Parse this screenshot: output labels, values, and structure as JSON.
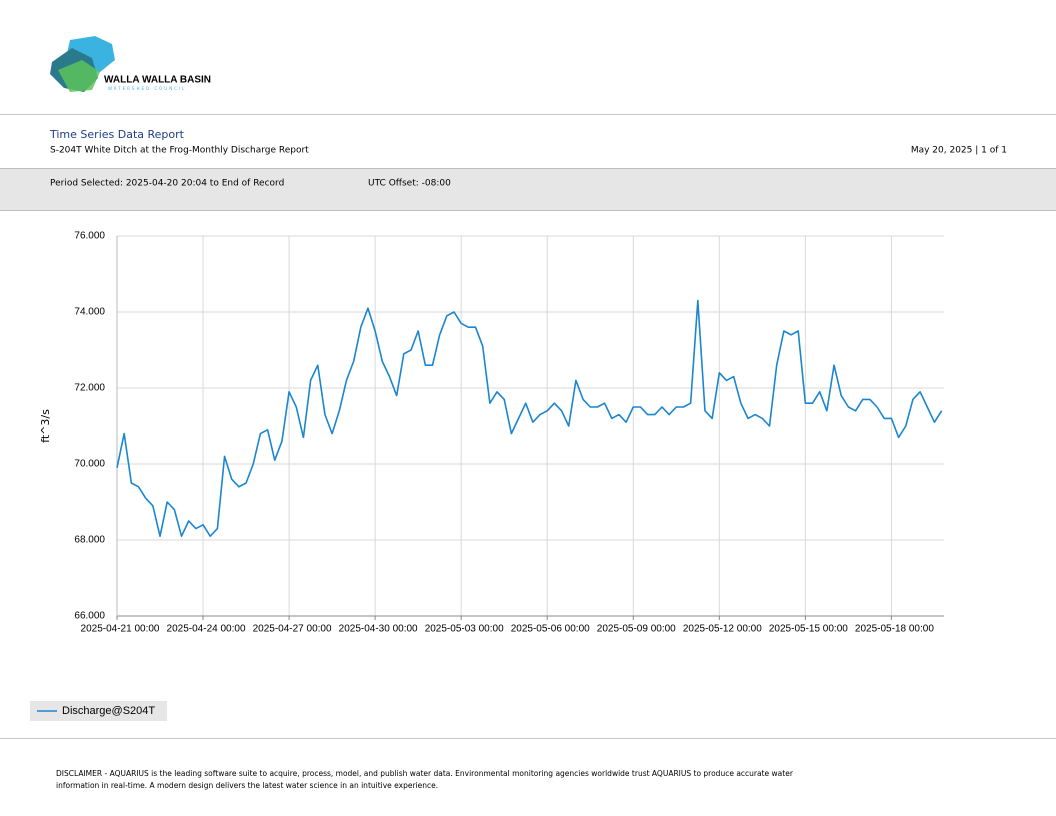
{
  "header": {
    "logo_name": "WALLA WALLA BASIN",
    "logo_sub": "WATERSHED COUNCIL",
    "title": "Time Series Data Report",
    "subtitle": "S-204T White Ditch at the Frog-Monthly Discharge Report",
    "date_page": "May 20, 2025 | 1 of 1",
    "period": "Period Selected: 2025-04-20 20:04 to End of Record",
    "utc_offset": "UTC Offset: -08:00"
  },
  "disclaimer": [
    "DISCLAIMER - AQUARIUS is the leading software suite to acquire, process, model, and publish water data. Environmental monitoring agencies worldwide trust AQUARIUS to produce accurate water",
    "information in real-time. A modern design delivers the latest water science in an intuitive experience."
  ],
  "chart_data": {
    "type": "line",
    "y_label": "ft^3/s",
    "grid": true,
    "legend": "bottom-left",
    "xlim": [
      "2025-04-21 00:00",
      "2025-05-19 20:00"
    ],
    "xticks": [
      "2025-04-21 00:00",
      "2025-04-24 00:00",
      "2025-04-27 00:00",
      "2025-04-30 00:00",
      "2025-05-03 00:00",
      "2025-05-06 00:00",
      "2025-05-09 00:00",
      "2025-05-12 00:00",
      "2025-05-15 00:00",
      "2025-05-18 00:00"
    ],
    "ylim": [
      66,
      76
    ],
    "yticks": [
      {
        "value": 66,
        "label": "66.000"
      },
      {
        "value": 68,
        "label": "68.000"
      },
      {
        "value": 70,
        "label": "70.000"
      },
      {
        "value": 72,
        "label": "72.000"
      },
      {
        "value": 74,
        "label": "74.000"
      },
      {
        "value": 76,
        "label": "76.000"
      }
    ],
    "x": [
      "2025-04-21 00:00",
      "2025-04-21 06:00",
      "2025-04-21 12:00",
      "2025-04-21 18:00",
      "2025-04-22 00:00",
      "2025-04-22 06:00",
      "2025-04-22 12:00",
      "2025-04-22 18:00",
      "2025-04-23 00:00",
      "2025-04-23 06:00",
      "2025-04-23 12:00",
      "2025-04-23 18:00",
      "2025-04-24 00:00",
      "2025-04-24 06:00",
      "2025-04-24 12:00",
      "2025-04-24 18:00",
      "2025-04-25 00:00",
      "2025-04-25 06:00",
      "2025-04-25 12:00",
      "2025-04-25 18:00",
      "2025-04-26 00:00",
      "2025-04-26 06:00",
      "2025-04-26 12:00",
      "2025-04-26 18:00",
      "2025-04-27 00:00",
      "2025-04-27 06:00",
      "2025-04-27 12:00",
      "2025-04-27 18:00",
      "2025-04-28 00:00",
      "2025-04-28 06:00",
      "2025-04-28 12:00",
      "2025-04-28 18:00",
      "2025-04-29 00:00",
      "2025-04-29 06:00",
      "2025-04-29 12:00",
      "2025-04-29 18:00",
      "2025-04-30 00:00",
      "2025-04-30 06:00",
      "2025-04-30 12:00",
      "2025-04-30 18:00",
      "2025-05-01 00:00",
      "2025-05-01 06:00",
      "2025-05-01 12:00",
      "2025-05-01 18:00",
      "2025-05-02 00:00",
      "2025-05-02 06:00",
      "2025-05-02 12:00",
      "2025-05-02 18:00",
      "2025-05-03 00:00",
      "2025-05-03 06:00",
      "2025-05-03 12:00",
      "2025-05-03 18:00",
      "2025-05-04 00:00",
      "2025-05-04 06:00",
      "2025-05-04 12:00",
      "2025-05-04 18:00",
      "2025-05-05 00:00",
      "2025-05-05 06:00",
      "2025-05-05 12:00",
      "2025-05-05 18:00",
      "2025-05-06 00:00",
      "2025-05-06 06:00",
      "2025-05-06 12:00",
      "2025-05-06 18:00",
      "2025-05-07 00:00",
      "2025-05-07 06:00",
      "2025-05-07 12:00",
      "2025-05-07 18:00",
      "2025-05-08 00:00",
      "2025-05-08 06:00",
      "2025-05-08 12:00",
      "2025-05-08 18:00",
      "2025-05-09 00:00",
      "2025-05-09 06:00",
      "2025-05-09 12:00",
      "2025-05-09 18:00",
      "2025-05-10 00:00",
      "2025-05-10 06:00",
      "2025-05-10 12:00",
      "2025-05-10 18:00",
      "2025-05-11 00:00",
      "2025-05-11 06:00",
      "2025-05-11 12:00",
      "2025-05-11 18:00",
      "2025-05-12 00:00",
      "2025-05-12 06:00",
      "2025-05-12 12:00",
      "2025-05-12 18:00",
      "2025-05-13 00:00",
      "2025-05-13 06:00",
      "2025-05-13 12:00",
      "2025-05-13 18:00",
      "2025-05-14 00:00",
      "2025-05-14 06:00",
      "2025-05-14 12:00",
      "2025-05-14 18:00",
      "2025-05-15 00:00",
      "2025-05-15 06:00",
      "2025-05-15 12:00",
      "2025-05-15 18:00",
      "2025-05-16 00:00",
      "2025-05-16 06:00",
      "2025-05-16 12:00",
      "2025-05-16 18:00",
      "2025-05-17 00:00",
      "2025-05-17 06:00",
      "2025-05-17 12:00",
      "2025-05-17 18:00",
      "2025-05-18 00:00",
      "2025-05-18 06:00",
      "2025-05-18 12:00",
      "2025-05-18 18:00",
      "2025-05-19 00:00",
      "2025-05-19 06:00",
      "2025-05-19 12:00",
      "2025-05-19 18:00"
    ],
    "series": [
      {
        "name": "Discharge@S204T",
        "color": "#1a86d0",
        "values": [
          69.9,
          70.8,
          69.5,
          69.4,
          69.1,
          68.9,
          68.1,
          69.0,
          68.8,
          68.1,
          68.5,
          68.3,
          68.4,
          68.1,
          68.3,
          70.2,
          69.6,
          69.4,
          69.5,
          70.0,
          70.8,
          70.9,
          70.1,
          70.6,
          71.9,
          71.5,
          70.7,
          72.2,
          72.6,
          71.3,
          70.8,
          71.4,
          72.2,
          72.7,
          73.6,
          74.1,
          73.5,
          72.7,
          72.3,
          71.8,
          72.9,
          73.0,
          73.5,
          72.6,
          72.6,
          73.4,
          73.9,
          74.0,
          73.7,
          73.6,
          73.6,
          73.1,
          71.6,
          71.9,
          71.7,
          70.8,
          71.2,
          71.6,
          71.1,
          71.3,
          71.4,
          71.6,
          71.4,
          71.0,
          72.2,
          71.7,
          71.5,
          71.5,
          71.6,
          71.2,
          71.3,
          71.1,
          71.5,
          71.5,
          71.3,
          71.3,
          71.5,
          71.3,
          71.5,
          71.5,
          71.6,
          74.3,
          71.4,
          71.2,
          72.4,
          72.2,
          72.3,
          71.6,
          71.2,
          71.3,
          71.2,
          71.0,
          72.6,
          73.5,
          73.4,
          73.5,
          71.6,
          71.6,
          71.9,
          71.4,
          72.6,
          71.8,
          71.5,
          71.4,
          71.7,
          71.7,
          71.5,
          71.2,
          71.2,
          70.7,
          71.0,
          71.7,
          71.9,
          71.5,
          71.1,
          71.4
        ]
      }
    ]
  }
}
